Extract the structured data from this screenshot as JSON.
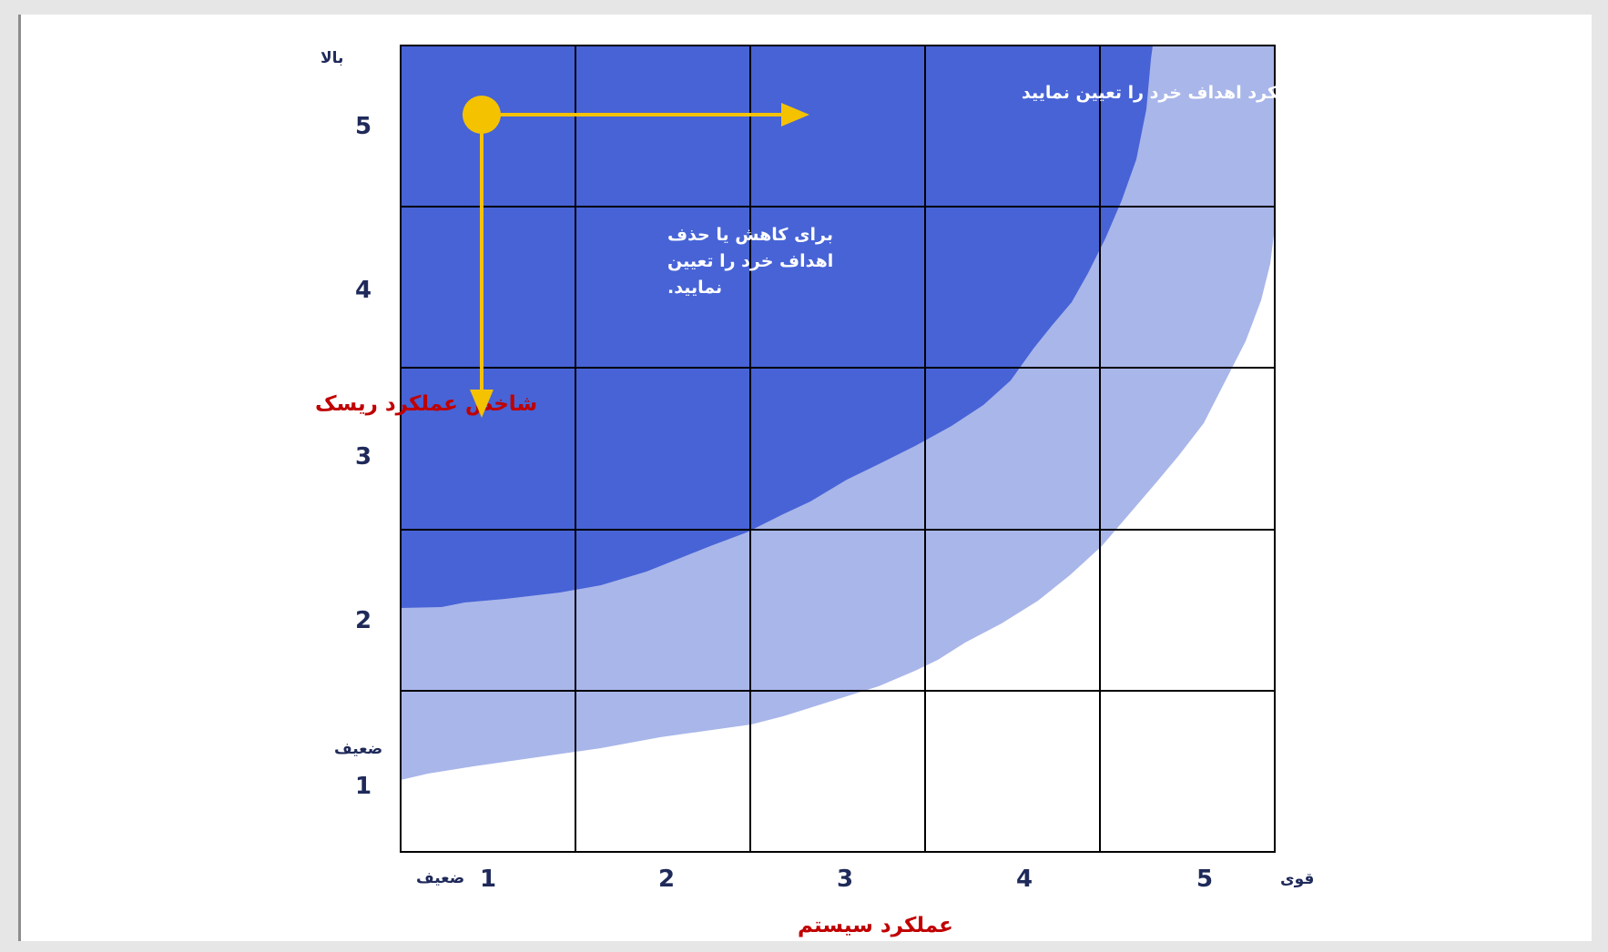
{
  "colors": {
    "high_zone": "#4763d6",
    "mid_zone": "#a9b6ea",
    "low_zone": "#ffffff",
    "grid": "#000000",
    "arrow": "#f5c200",
    "axis_title": "#c00000",
    "tick": "#1f2a5a"
  },
  "y_axis": {
    "title": "شاخص عملکرد ریسک",
    "ticks": [
      "1",
      "2",
      "3",
      "4",
      "5"
    ],
    "top_label": "بالا",
    "bottom_label": "ضعیف"
  },
  "x_axis": {
    "title": "عملکرد سیستم",
    "ticks": [
      "1",
      "2",
      "3",
      "4",
      "5"
    ],
    "left_label": "ضعیف",
    "right_label": "قوی"
  },
  "annotations": {
    "horizontal_arrow_text": "برای بهبود عملکرد اهداف خرد را تعیین نمایید",
    "vertical_arrow_text": [
      "برای کاهش یا حذف",
      "اهداف خرد را تعیین",
      "نمایید."
    ]
  },
  "icons": {
    "start_point": "circle-icon",
    "right_arrow": "arrow-right-icon",
    "down_arrow": "arrow-down-icon"
  }
}
